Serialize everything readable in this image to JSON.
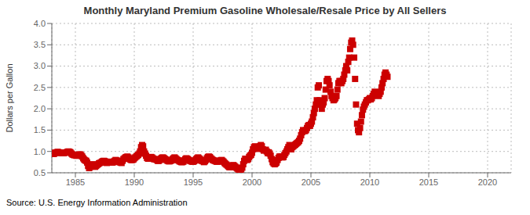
{
  "chart_data": {
    "type": "scatter",
    "title": "Monthly Maryland Premium Gasoline Wholesale/Resale Price by All Sellers",
    "ylabel": "Dollars per Gallon",
    "annotations": [
      "Source: U.S. Energy Information Administration"
    ],
    "xlim": [
      1983,
      2022
    ],
    "ylim": [
      0.5,
      4.0
    ],
    "xticks": [
      1985,
      1990,
      1995,
      2000,
      2005,
      2010,
      2015,
      2020
    ],
    "yticks": [
      0.5,
      {
        "value": 1.0,
        "label": "1.0"
      },
      1.5,
      {
        "value": 2.0,
        "label": "2.0"
      },
      2.5,
      {
        "value": 3.0,
        "label": "3.0"
      },
      3.5,
      {
        "value": 4.0,
        "label": "4.0"
      }
    ],
    "grid": true,
    "color": "#cc0000",
    "marker": "square",
    "x": [
      1983.0,
      1983.08,
      1983.17,
      1983.25,
      1983.33,
      1983.42,
      1983.5,
      1983.58,
      1983.67,
      1983.75,
      1983.83,
      1983.92,
      1984.0,
      1984.08,
      1984.17,
      1984.25,
      1984.33,
      1984.42,
      1984.5,
      1984.58,
      1984.67,
      1984.75,
      1984.83,
      1984.92,
      1985.0,
      1985.08,
      1985.17,
      1985.25,
      1985.33,
      1985.42,
      1985.5,
      1985.58,
      1985.67,
      1985.75,
      1985.83,
      1985.92,
      1986.0,
      1986.08,
      1986.17,
      1986.25,
      1986.33,
      1986.42,
      1986.5,
      1986.58,
      1986.67,
      1986.75,
      1986.83,
      1986.92,
      1987.0,
      1987.08,
      1987.17,
      1987.25,
      1987.33,
      1987.42,
      1987.5,
      1987.58,
      1987.67,
      1987.75,
      1987.83,
      1987.92,
      1988.0,
      1988.08,
      1988.17,
      1988.25,
      1988.33,
      1988.42,
      1988.5,
      1988.58,
      1988.67,
      1988.75,
      1988.83,
      1988.92,
      1989.0,
      1989.08,
      1989.17,
      1989.25,
      1989.33,
      1989.42,
      1989.5,
      1989.58,
      1989.67,
      1989.75,
      1989.83,
      1989.92,
      1990.0,
      1990.08,
      1990.17,
      1990.25,
      1990.33,
      1990.42,
      1990.5,
      1990.58,
      1990.67,
      1990.75,
      1990.83,
      1990.92,
      1991.0,
      1991.08,
      1991.17,
      1991.25,
      1991.33,
      1991.42,
      1991.5,
      1991.58,
      1991.67,
      1991.75,
      1991.83,
      1991.92,
      1992.0,
      1992.08,
      1992.17,
      1992.25,
      1992.33,
      1992.42,
      1992.5,
      1992.58,
      1992.67,
      1992.75,
      1992.83,
      1992.92,
      1993.0,
      1993.08,
      1993.17,
      1993.25,
      1993.33,
      1993.42,
      1993.5,
      1993.58,
      1993.67,
      1993.75,
      1993.83,
      1993.92,
      1994.0,
      1994.08,
      1994.17,
      1994.25,
      1994.33,
      1994.42,
      1994.5,
      1994.58,
      1994.67,
      1994.75,
      1994.83,
      1994.92,
      1995.0,
      1995.08,
      1995.17,
      1995.25,
      1995.33,
      1995.42,
      1995.5,
      1995.58,
      1995.67,
      1995.75,
      1995.83,
      1995.92,
      1996.0,
      1996.08,
      1996.17,
      1996.25,
      1996.33,
      1996.42,
      1996.5,
      1996.58,
      1996.67,
      1996.75,
      1996.83,
      1996.92,
      1997.0,
      1997.08,
      1997.17,
      1997.25,
      1997.33,
      1997.42,
      1997.5,
      1997.58,
      1997.67,
      1997.75,
      1997.83,
      1997.92,
      1998.0,
      1998.08,
      1998.17,
      1998.25,
      1998.33,
      1998.42,
      1998.5,
      1998.58,
      1998.67,
      1998.75,
      1998.83,
      1998.92,
      1999.0,
      1999.08,
      1999.17,
      1999.25,
      1999.33,
      1999.42,
      1999.5,
      1999.58,
      1999.67,
      1999.75,
      1999.83,
      1999.92,
      2000.0,
      2000.08,
      2000.17,
      2000.25,
      2000.33,
      2000.42,
      2000.5,
      2000.58,
      2000.67,
      2000.75,
      2000.83,
      2000.92,
      2001.0,
      2001.08,
      2001.17,
      2001.25,
      2001.33,
      2001.42,
      2001.5,
      2001.58,
      2001.67,
      2001.75,
      2001.83,
      2001.92,
      2002.0,
      2002.08,
      2002.17,
      2002.25,
      2002.33,
      2002.42,
      2002.5,
      2002.58,
      2002.67,
      2002.75,
      2002.83,
      2002.92,
      2003.0,
      2003.08,
      2003.17,
      2003.25,
      2003.33,
      2003.42,
      2003.5,
      2003.58,
      2003.67,
      2003.75,
      2003.83,
      2003.92,
      2004.0,
      2004.08,
      2004.17,
      2004.25,
      2004.33,
      2004.42,
      2004.5,
      2004.58,
      2004.67,
      2004.75,
      2004.83,
      2004.92,
      2005.0,
      2005.08,
      2005.17,
      2005.25,
      2005.33,
      2005.42,
      2005.5,
      2005.58,
      2005.67,
      2005.75,
      2005.83,
      2005.92,
      2006.0,
      2006.08,
      2006.17,
      2006.25,
      2006.33,
      2006.42,
      2006.5,
      2006.58,
      2006.67,
      2006.75,
      2006.83,
      2006.92,
      2007.0,
      2007.08,
      2007.17,
      2007.25,
      2007.33,
      2007.42,
      2007.5,
      2007.58,
      2007.67,
      2007.75,
      2007.83,
      2007.92,
      2008.0,
      2008.08,
      2008.17,
      2008.25,
      2008.33,
      2008.42,
      2008.5,
      2008.58,
      2008.67,
      2008.75,
      2008.83,
      2008.92,
      2009.0,
      2009.08,
      2009.17,
      2009.25,
      2009.33,
      2009.42,
      2009.5,
      2009.58,
      2009.67,
      2009.75,
      2009.83,
      2009.92,
      2010.0,
      2010.08,
      2010.17,
      2010.25,
      2010.33,
      2010.42,
      2010.5,
      2010.58,
      2010.67,
      2010.75,
      2010.83,
      2010.92,
      2011.0,
      2011.08,
      2011.17,
      2011.25,
      2011.33,
      2011.42,
      2011.5
    ],
    "values": [
      0.97,
      0.95,
      0.94,
      0.96,
      0.97,
      0.98,
      0.99,
      0.98,
      0.97,
      0.97,
      0.96,
      0.96,
      0.96,
      0.97,
      0.97,
      0.98,
      0.99,
      1.0,
      0.99,
      0.98,
      0.95,
      0.93,
      0.92,
      0.91,
      0.92,
      0.9,
      0.9,
      0.91,
      0.93,
      0.93,
      0.91,
      0.88,
      0.84,
      0.81,
      0.79,
      0.78,
      0.74,
      0.66,
      0.61,
      0.64,
      0.68,
      0.7,
      0.68,
      0.66,
      0.64,
      0.66,
      0.68,
      0.7,
      0.72,
      0.73,
      0.74,
      0.76,
      0.77,
      0.78,
      0.77,
      0.75,
      0.73,
      0.74,
      0.75,
      0.76,
      0.75,
      0.74,
      0.74,
      0.76,
      0.78,
      0.8,
      0.79,
      0.77,
      0.76,
      0.75,
      0.74,
      0.73,
      0.78,
      0.82,
      0.84,
      0.86,
      0.87,
      0.88,
      0.86,
      0.83,
      0.81,
      0.8,
      0.8,
      0.81,
      0.84,
      0.86,
      0.88,
      0.9,
      0.92,
      0.95,
      1.0,
      1.1,
      1.15,
      1.12,
      1.0,
      0.95,
      0.9,
      0.85,
      0.83,
      0.84,
      0.86,
      0.87,
      0.86,
      0.84,
      0.82,
      0.82,
      0.81,
      0.8,
      0.78,
      0.78,
      0.8,
      0.83,
      0.85,
      0.86,
      0.85,
      0.83,
      0.81,
      0.8,
      0.78,
      0.77,
      0.77,
      0.78,
      0.79,
      0.82,
      0.84,
      0.86,
      0.84,
      0.82,
      0.8,
      0.79,
      0.77,
      0.76,
      0.75,
      0.75,
      0.76,
      0.79,
      0.82,
      0.84,
      0.83,
      0.81,
      0.79,
      0.78,
      0.77,
      0.76,
      0.76,
      0.77,
      0.79,
      0.82,
      0.84,
      0.86,
      0.84,
      0.82,
      0.79,
      0.78,
      0.77,
      0.75,
      0.77,
      0.8,
      0.84,
      0.87,
      0.88,
      0.87,
      0.84,
      0.82,
      0.8,
      0.79,
      0.78,
      0.77,
      0.76,
      0.76,
      0.77,
      0.78,
      0.79,
      0.8,
      0.78,
      0.76,
      0.73,
      0.71,
      0.69,
      0.67,
      0.65,
      0.63,
      0.63,
      0.65,
      0.67,
      0.68,
      0.66,
      0.64,
      0.62,
      0.6,
      0.58,
      0.57,
      0.56,
      0.58,
      0.62,
      0.7,
      0.78,
      0.83,
      0.82,
      0.8,
      0.82,
      0.87,
      0.9,
      0.92,
      0.97,
      1.05,
      1.1,
      1.12,
      1.08,
      1.1,
      1.08,
      1.06,
      1.12,
      1.15,
      1.12,
      1.05,
      1.02,
      1.03,
      1.04,
      1.0,
      0.96,
      0.98,
      0.95,
      0.9,
      0.82,
      0.75,
      0.72,
      0.7,
      0.72,
      0.74,
      0.8,
      0.85,
      0.88,
      0.88,
      0.88,
      0.86,
      0.87,
      0.92,
      0.96,
      1.0,
      1.05,
      1.1,
      1.15,
      1.08,
      1.05,
      1.1,
      1.12,
      1.14,
      1.16,
      1.18,
      1.2,
      1.22,
      1.25,
      1.3,
      1.38,
      1.45,
      1.5,
      1.48,
      1.48,
      1.5,
      1.55,
      1.6,
      1.62,
      1.6,
      1.65,
      1.7,
      1.8,
      1.9,
      2.0,
      2.1,
      2.2,
      2.5,
      2.55,
      2.2,
      2.1,
      2.0,
      2.1,
      2.15,
      2.25,
      2.45,
      2.65,
      2.7,
      2.65,
      2.55,
      2.4,
      2.3,
      2.25,
      2.2,
      2.22,
      2.25,
      2.3,
      2.45,
      2.6,
      2.65,
      2.65,
      2.6,
      2.65,
      2.7,
      2.8,
      2.9,
      3.0,
      2.9,
      3.1,
      3.2,
      3.4,
      3.55,
      3.6,
      3.5,
      3.2,
      2.7,
      2.1,
      1.65,
      1.5,
      1.45,
      1.55,
      1.7,
      1.85,
      1.98,
      2.05,
      2.1,
      2.15,
      2.2,
      2.2,
      2.22,
      2.25,
      2.22,
      2.25,
      2.3,
      2.35,
      2.4,
      2.38,
      2.35,
      2.32,
      2.3,
      2.35,
      2.4,
      2.5,
      2.6,
      2.7,
      2.8,
      2.85,
      2.8,
      2.75
    ]
  }
}
